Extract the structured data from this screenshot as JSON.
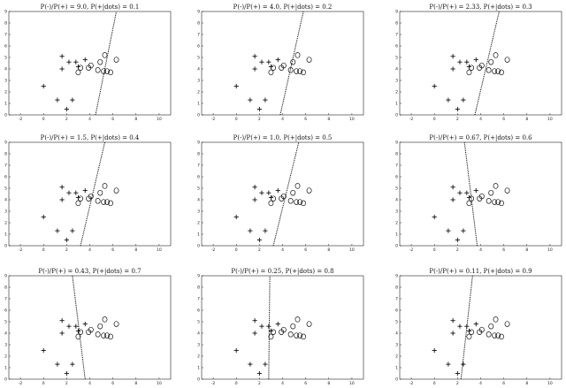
{
  "chart_data": {
    "type": "scatter",
    "xlim": [
      -3,
      11
    ],
    "ylim": [
      0,
      9
    ],
    "x_ticks": [
      -2,
      0,
      2,
      4,
      6,
      8,
      10
    ],
    "y_ticks": [
      0,
      1,
      2,
      3,
      4,
      5,
      6,
      7,
      8,
      9
    ],
    "grid": false,
    "marker_plus": "+",
    "marker_circle": "o",
    "points_plus": [
      [
        0.0,
        2.5
      ],
      [
        1.2,
        1.3
      ],
      [
        2.0,
        0.5
      ],
      [
        2.5,
        1.3
      ],
      [
        1.6,
        4.0
      ],
      [
        1.6,
        5.1
      ],
      [
        2.2,
        4.6
      ],
      [
        2.8,
        4.6
      ],
      [
        3.0,
        4.2
      ],
      [
        3.6,
        4.8
      ]
    ],
    "points_circle": [
      [
        3.0,
        3.7
      ],
      [
        3.2,
        4.1
      ],
      [
        3.9,
        4.1
      ],
      [
        4.1,
        4.3
      ],
      [
        4.7,
        3.9
      ],
      [
        4.9,
        4.6
      ],
      [
        5.2,
        3.8
      ],
      [
        5.5,
        3.8
      ],
      [
        5.8,
        3.7
      ],
      [
        5.3,
        5.2
      ],
      [
        6.3,
        4.8
      ]
    ],
    "panels": [
      {
        "title": "P(-)/P(+) = 9.0, P(+|dots) = 0.1",
        "boundary": [
          [
            4.5,
            0
          ],
          [
            6.3,
            9
          ]
        ]
      },
      {
        "title": "P(-)/P(+) = 4.0, P(+|dots) = 0.2",
        "boundary": [
          [
            3.8,
            0
          ],
          [
            5.8,
            9
          ]
        ]
      },
      {
        "title": "P(-)/P(+) = 2.33, P(+|dots) = 0.3",
        "boundary": [
          [
            3.5,
            0
          ],
          [
            5.6,
            9
          ]
        ]
      },
      {
        "title": "P(-)/P(+) = 1.5, P(+|dots) = 0.4",
        "boundary": [
          [
            3.2,
            0
          ],
          [
            5.3,
            9
          ]
        ]
      },
      {
        "title": "P(-)/P(+) = 1.0, P(+|dots) = 0.5",
        "boundary": [
          [
            3.2,
            0
          ],
          [
            5.4,
            9
          ]
        ]
      },
      {
        "title": "P(-)/P(+) = 0.67, P(+|dots) = 0.6",
        "boundary": [
          [
            3.7,
            0
          ],
          [
            2.6,
            9
          ]
        ]
      },
      {
        "title": "P(-)/P(+) = 0.43, P(+|dots) = 0.7",
        "boundary": [
          [
            3.6,
            0
          ],
          [
            2.5,
            9
          ]
        ]
      },
      {
        "title": "P(-)/P(+) = 0.25, P(+|dots) = 0.8",
        "boundary": [
          [
            2.8,
            0
          ],
          [
            2.9,
            9
          ]
        ]
      },
      {
        "title": "P(-)/P(+) = 0.11, P(+|dots) = 0.9",
        "boundary": [
          [
            2.3,
            0
          ],
          [
            3.3,
            9
          ]
        ]
      }
    ]
  }
}
